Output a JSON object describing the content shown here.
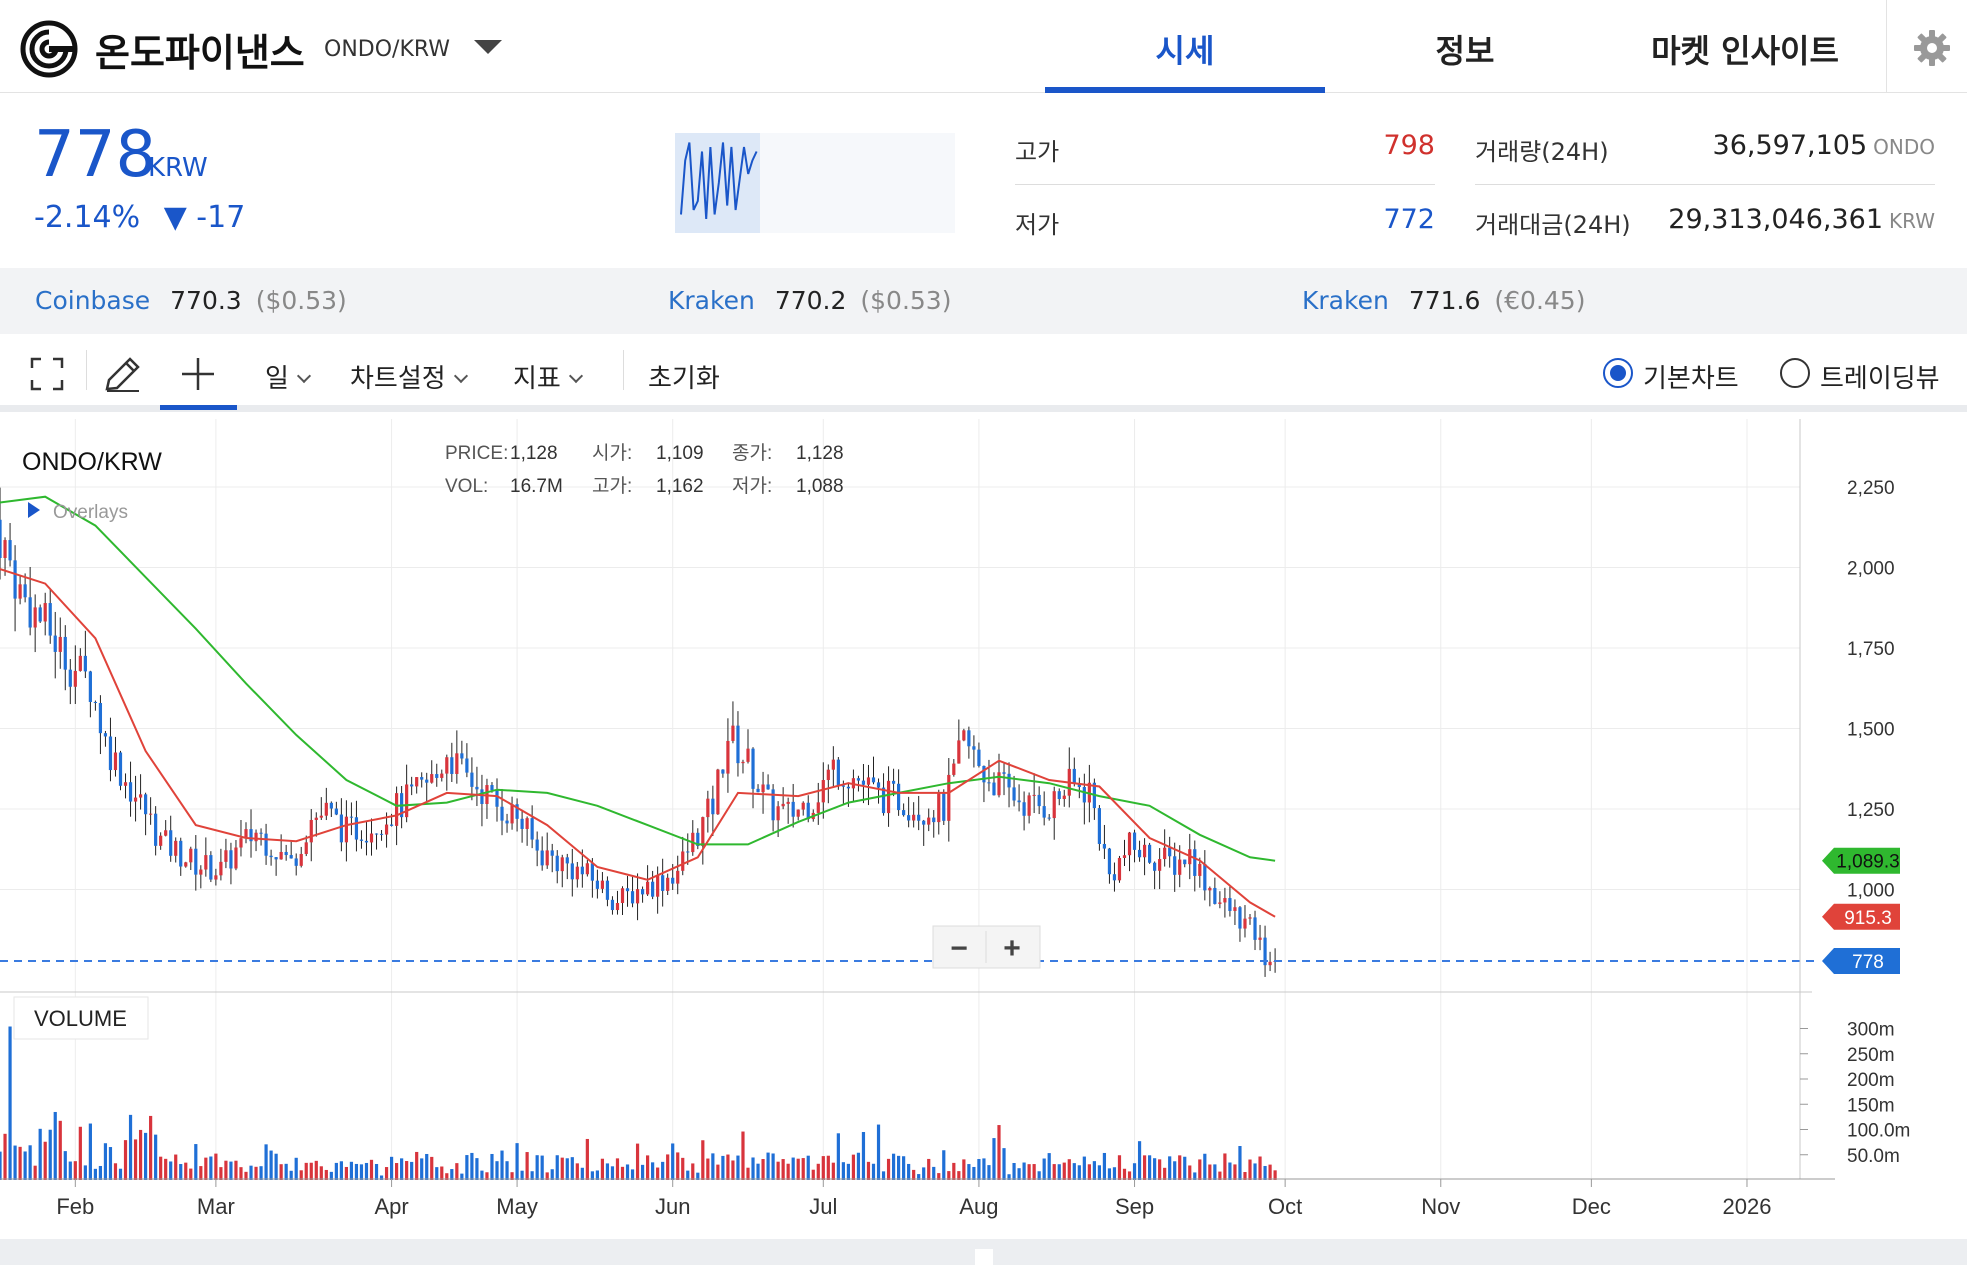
{
  "header": {
    "coin_name": "온도파이낸스",
    "pair": "ONDO/KRW",
    "tabs": [
      {
        "label": "시세",
        "active": true
      },
      {
        "label": "정보",
        "active": false
      },
      {
        "label": "마켓 인사이트",
        "active": false
      }
    ],
    "icons": {
      "logo": "ondo-logo-icon",
      "dropdown": "chevron-down-icon",
      "settings": "gear-icon"
    }
  },
  "summary": {
    "price": "778",
    "unit": "KRW",
    "change_pct": "-2.14%",
    "change_abs": "▼ -17",
    "high_label": "고가",
    "high": "798",
    "low_label": "저가",
    "low": "772",
    "volume_label": "거래량(24H)",
    "volume": "36,597,105",
    "volume_unit": "ONDO",
    "value_label": "거래대금(24H)",
    "value": "29,313,046,361",
    "value_unit": "KRW",
    "spark": [
      0.15,
      0.75,
      0.95,
      0.2,
      0.3,
      0.85,
      0.1,
      0.9,
      0.15,
      0.5,
      0.95,
      0.25,
      0.9,
      0.2,
      0.55,
      0.9,
      0.6,
      0.75,
      0.85
    ]
  },
  "exchanges": [
    {
      "name": "Coinbase",
      "price": "770.3",
      "fx": "($0.53)"
    },
    {
      "name": "Kraken",
      "price": "770.2",
      "fx": "($0.53)"
    },
    {
      "name": "Kraken",
      "price": "771.6",
      "fx": "(€0.45)"
    }
  ],
  "toolbar": {
    "period": "일",
    "chart_settings": "차트설정",
    "indicators": "지표",
    "reset": "초기화",
    "basic_chart": "기본차트",
    "tradingview": "트레이딩뷰",
    "icons": [
      "fullscreen-icon",
      "pencil-icon",
      "crosshair-icon"
    ]
  },
  "chart_data": {
    "type": "candlestick",
    "symbol": "ONDO/KRW",
    "legend_label": "Overlays",
    "ohlc_header": {
      "price_label": "PRICE:",
      "price": "1,128",
      "vol_label": "VOL:",
      "vol": "16.7M",
      "open_label": "시가:",
      "open": "1,109",
      "high_label": "고가:",
      "high": "1,162",
      "close_label": "종가:",
      "close": "1,128",
      "low_label": "저가:",
      "low": "1,088"
    },
    "x_ticks": [
      "Feb",
      "Mar",
      "Apr",
      "May",
      "Jun",
      "Jul",
      "Aug",
      "Sep",
      "Oct",
      "Nov",
      "Dec",
      "2026"
    ],
    "y_ticks": [
      "2,250",
      "2,000",
      "1,750",
      "1,500",
      "1,250",
      "1,000"
    ],
    "ylim": [
      780,
      2450
    ],
    "volume_label": "VOLUME",
    "volume_ticks": [
      "300m",
      "250m",
      "200m",
      "150m",
      "100.0m",
      "50.0m"
    ],
    "volume_ylim": [
      0,
      330
    ],
    "last_price_tag": "778",
    "ma_short_tag": "915.3",
    "ma_long_tag": "1,089.3",
    "last_price": 778,
    "ma_short_last": 915.3,
    "ma_long_last": 1089.3,
    "zoom_out_label": "−",
    "zoom_in_label": "+",
    "price_path": [
      [
        0,
        2150
      ],
      [
        5,
        1920
      ],
      [
        10,
        1820
      ],
      [
        15,
        1700
      ],
      [
        19,
        1640
      ],
      [
        22,
        1460
      ],
      [
        26,
        1340
      ],
      [
        30,
        1240
      ],
      [
        33,
        1150
      ],
      [
        36,
        1120
      ],
      [
        40,
        1080
      ],
      [
        45,
        1060
      ],
      [
        48,
        1120
      ],
      [
        52,
        1180
      ],
      [
        55,
        1140
      ],
      [
        59,
        1080
      ],
      [
        63,
        1220
      ],
      [
        66,
        1240
      ],
      [
        70,
        1180
      ],
      [
        75,
        1200
      ],
      [
        79,
        1240
      ],
      [
        84,
        1300
      ],
      [
        88,
        1350
      ],
      [
        90,
        1430
      ],
      [
        93,
        1360
      ],
      [
        97,
        1310
      ],
      [
        100,
        1260
      ],
      [
        104,
        1230
      ],
      [
        108,
        1120
      ],
      [
        112,
        1090
      ],
      [
        116,
        1060
      ],
      [
        120,
        1020
      ],
      [
        124,
        960
      ],
      [
        128,
        1000
      ],
      [
        133,
        1030
      ],
      [
        136,
        1060
      ],
      [
        139,
        1150
      ],
      [
        143,
        1260
      ],
      [
        146,
        1480
      ],
      [
        150,
        1390
      ],
      [
        154,
        1260
      ],
      [
        158,
        1230
      ],
      [
        163,
        1280
      ],
      [
        167,
        1380
      ],
      [
        172,
        1340
      ],
      [
        176,
        1290
      ],
      [
        180,
        1280
      ],
      [
        184,
        1250
      ],
      [
        189,
        1250
      ],
      [
        193,
        1460
      ],
      [
        197,
        1360
      ],
      [
        202,
        1300
      ],
      [
        206,
        1260
      ],
      [
        210,
        1260
      ],
      [
        214,
        1320
      ],
      [
        218,
        1310
      ],
      [
        222,
        1040
      ],
      [
        226,
        1130
      ],
      [
        231,
        1100
      ],
      [
        235,
        1080
      ],
      [
        238,
        1110
      ],
      [
        241,
        1030
      ],
      [
        244,
        960
      ],
      [
        248,
        910
      ],
      [
        251,
        860
      ],
      [
        253,
        790
      ],
      [
        255,
        778
      ]
    ],
    "ma_short": [
      [
        0,
        2000
      ],
      [
        10,
        1950
      ],
      [
        20,
        1780
      ],
      [
        30,
        1430
      ],
      [
        40,
        1200
      ],
      [
        50,
        1160
      ],
      [
        60,
        1150
      ],
      [
        70,
        1200
      ],
      [
        80,
        1230
      ],
      [
        90,
        1300
      ],
      [
        100,
        1290
      ],
      [
        110,
        1200
      ],
      [
        120,
        1070
      ],
      [
        130,
        1030
      ],
      [
        140,
        1100
      ],
      [
        148,
        1300
      ],
      [
        160,
        1290
      ],
      [
        170,
        1330
      ],
      [
        180,
        1300
      ],
      [
        190,
        1300
      ],
      [
        200,
        1400
      ],
      [
        210,
        1340
      ],
      [
        220,
        1320
      ],
      [
        230,
        1160
      ],
      [
        240,
        1090
      ],
      [
        250,
        960
      ],
      [
        255,
        915.3
      ]
    ],
    "ma_long": [
      [
        0,
        2200
      ],
      [
        10,
        2220
      ],
      [
        20,
        2130
      ],
      [
        30,
        1970
      ],
      [
        40,
        1810
      ],
      [
        50,
        1640
      ],
      [
        60,
        1480
      ],
      [
        70,
        1340
      ],
      [
        80,
        1260
      ],
      [
        90,
        1270
      ],
      [
        100,
        1310
      ],
      [
        110,
        1300
      ],
      [
        120,
        1260
      ],
      [
        130,
        1200
      ],
      [
        140,
        1140
      ],
      [
        150,
        1140
      ],
      [
        160,
        1210
      ],
      [
        170,
        1270
      ],
      [
        180,
        1300
      ],
      [
        190,
        1330
      ],
      [
        200,
        1350
      ],
      [
        210,
        1330
      ],
      [
        220,
        1290
      ],
      [
        230,
        1260
      ],
      [
        240,
        1170
      ],
      [
        250,
        1100
      ],
      [
        255,
        1089.3
      ]
    ]
  }
}
